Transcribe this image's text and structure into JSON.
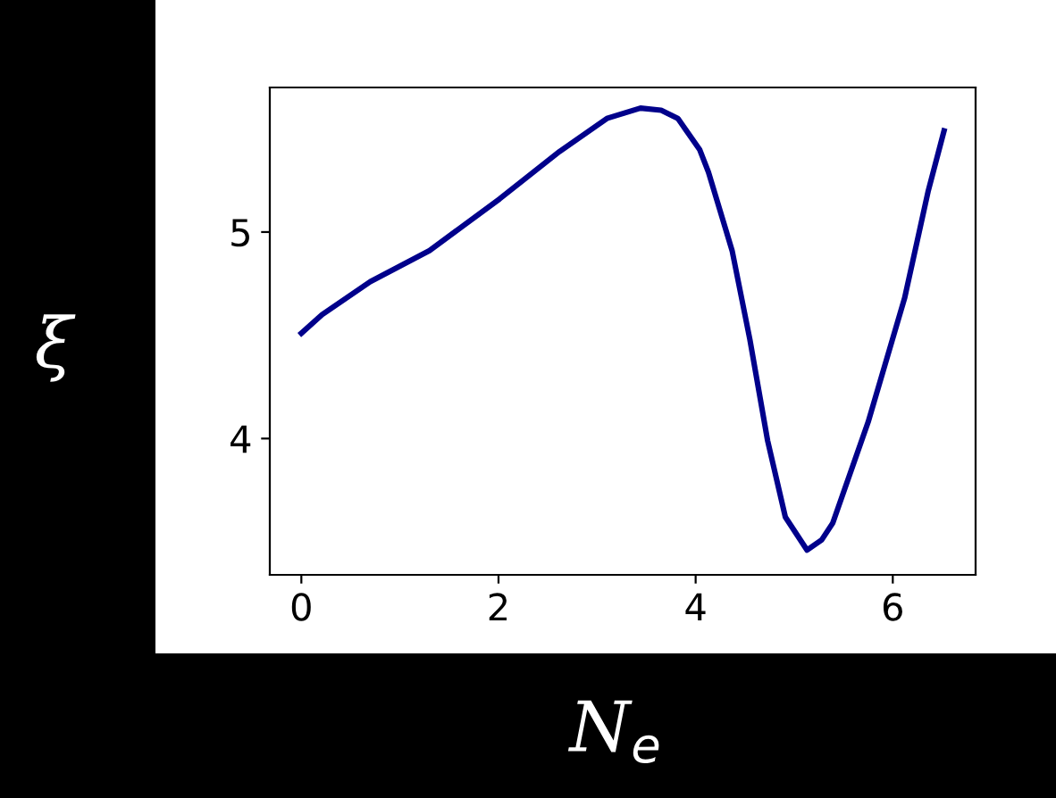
{
  "chart_data": {
    "type": "line",
    "xlabel": "N$_{e}$",
    "ylabel": "ξ",
    "xlim": [
      -0.32,
      6.84
    ],
    "ylim": [
      3.34,
      5.7
    ],
    "xticks": [
      0,
      2,
      4,
      6
    ],
    "yticks": [
      4,
      5
    ],
    "grid": false,
    "legend": false,
    "marker": "none",
    "line_style": "solid",
    "series": [
      {
        "color": "#00008b",
        "x": [
          0,
          0.21,
          0.7,
          1.3,
          2.01,
          2.62,
          3.1,
          3.44,
          3.65,
          3.82,
          4.04,
          4.13,
          4.37,
          4.55,
          4.73,
          4.91,
          5.13,
          5.28,
          5.39,
          5.75,
          6.12,
          6.36,
          6.52
        ],
        "values": [
          4.51,
          4.6,
          4.76,
          4.91,
          5.16,
          5.39,
          5.55,
          5.6,
          5.59,
          5.55,
          5.4,
          5.29,
          4.91,
          4.48,
          3.99,
          3.62,
          3.46,
          3.51,
          3.59,
          4.08,
          4.68,
          5.2,
          5.49
        ]
      }
    ]
  }
}
